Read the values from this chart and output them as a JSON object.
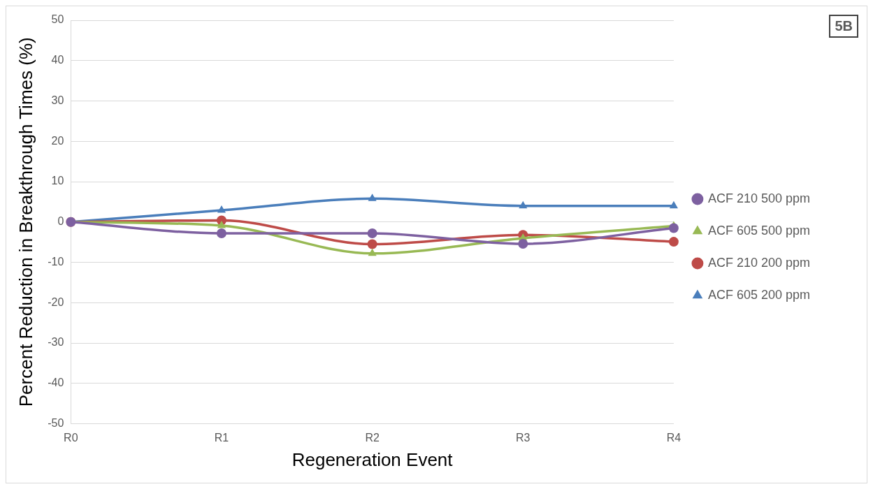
{
  "chart_data": {
    "type": "line",
    "xlabel": "Regeneration Event",
    "ylabel": "Percent Reduction in Breakthrough Times (%)",
    "annotations": [
      "5B"
    ],
    "categories": [
      "R0",
      "R1",
      "R2",
      "R3",
      "R4"
    ],
    "series": [
      {
        "name": "ACF 605 200 ppm",
        "color": "#4a7ebb",
        "marker": "triangle",
        "values": [
          0,
          2.9,
          5.8,
          4.0,
          4.0
        ]
      },
      {
        "name": "ACF 210 200 ppm",
        "color": "#be4b48",
        "marker": "circle",
        "values": [
          0,
          0.4,
          -5.5,
          -3.2,
          -4.9
        ]
      },
      {
        "name": "ACF 605 500 ppm",
        "color": "#98b954",
        "marker": "triangle",
        "values": [
          0,
          -0.9,
          -7.8,
          -4.0,
          -1.0
        ]
      },
      {
        "name": "ACF 210 500 ppm",
        "color": "#7d60a0",
        "marker": "circle",
        "values": [
          0,
          -2.8,
          -2.8,
          -5.4,
          -1.5
        ]
      }
    ],
    "ylim": [
      -50,
      50
    ],
    "yticks": [
      -50,
      -40,
      -30,
      -20,
      -10,
      0,
      10,
      20,
      30,
      40,
      50
    ],
    "grid": "y",
    "legend": "right"
  }
}
